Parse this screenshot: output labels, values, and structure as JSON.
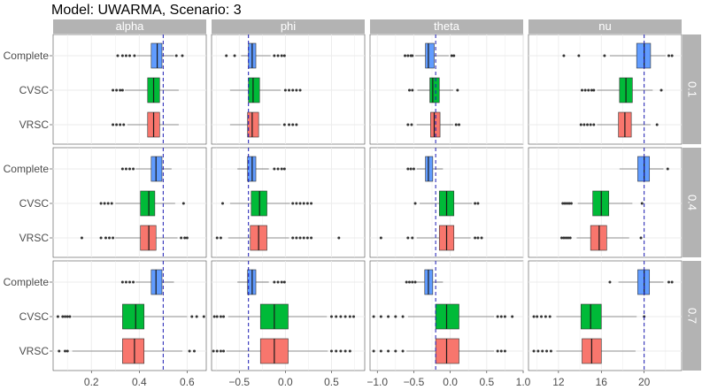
{
  "title": "Model: UWARMA, Scenario: 3",
  "colors": {
    "Complete": "#619CFF",
    "CVSC": "#00BA38",
    "VRSC": "#F8766D",
    "strip": "#b3b3b3",
    "reference": "#1a1ab3",
    "outlier": "#333333"
  },
  "chart_data": {
    "type": "boxplot",
    "title": "Model: UWARMA, Scenario: 3",
    "parameters": [
      "alpha",
      "phi",
      "theta",
      "nu"
    ],
    "rows": [
      "0.1",
      "0.4",
      "0.7"
    ],
    "categories": [
      "Complete",
      "CVSC",
      "VRSC"
    ],
    "true_values": {
      "alpha": 0.5,
      "phi": -0.4,
      "theta": -0.2,
      "nu": 20
    },
    "axes": {
      "alpha": {
        "range": [
          0.04,
          0.68
        ],
        "ticks": [
          0.2,
          0.4,
          0.6
        ],
        "tick_labels": [
          "0.2",
          "0.4",
          "0.6"
        ]
      },
      "phi": {
        "range": [
          -0.8,
          0.86
        ],
        "ticks": [
          -0.5,
          0.0,
          0.5
        ],
        "tick_labels": [
          "−0.5",
          "0.0",
          "0.5"
        ]
      },
      "theta": {
        "range": [
          -1.1,
          1.0
        ],
        "ticks": [
          -1.0,
          -0.5,
          0.0,
          0.5,
          1.0
        ],
        "tick_labels": [
          "−1.0",
          "−0.5",
          "0.0",
          "0.5",
          "1.0"
        ]
      },
      "nu": {
        "range": [
          9.2,
          23.5
        ],
        "ticks": [
          12,
          16,
          20
        ],
        "tick_labels": [
          "12",
          "16",
          "20"
        ]
      }
    },
    "panels": {
      "0.1": {
        "alpha": {
          "Complete": {
            "whisker_low": 0.39,
            "q1": 0.45,
            "median": 0.475,
            "q3": 0.495,
            "whisker_high": 0.545,
            "outliers": [
              0.31,
              0.33,
              0.345,
              0.36,
              0.38,
              0.555,
              0.58
            ]
          },
          "CVSC": {
            "whisker_low": 0.34,
            "q1": 0.435,
            "median": 0.46,
            "q3": 0.485,
            "whisker_high": 0.565,
            "outliers": [
              0.29,
              0.305,
              0.32,
              0.33
            ]
          },
          "VRSC": {
            "whisker_low": 0.35,
            "q1": 0.435,
            "median": 0.46,
            "q3": 0.485,
            "whisker_high": 0.565,
            "outliers": [
              0.29,
              0.305,
              0.32,
              0.335
            ]
          }
        },
        "phi": {
          "Complete": {
            "whisker_low": -0.48,
            "q1": -0.4,
            "median": -0.36,
            "q3": -0.32,
            "whisker_high": -0.16,
            "outliers": [
              -0.64,
              -0.55,
              -0.12,
              -0.08,
              -0.04,
              -0.01
            ]
          },
          "CVSC": {
            "whisker_low": -0.6,
            "q1": -0.4,
            "median": -0.35,
            "q3": -0.28,
            "whisker_high": -0.05,
            "outliers": [
              0.0,
              0.04,
              0.08,
              0.12,
              0.16
            ]
          },
          "VRSC": {
            "whisker_low": -0.6,
            "q1": -0.41,
            "median": -0.36,
            "q3": -0.29,
            "whisker_high": -0.05,
            "outliers": [
              -0.01,
              0.04,
              0.08,
              0.12
            ]
          }
        },
        "theta": {
          "Complete": {
            "whisker_low": -0.48,
            "q1": -0.34,
            "median": -0.3,
            "q3": -0.22,
            "whisker_high": -0.02,
            "outliers": [
              -0.62,
              -0.58,
              -0.54,
              -0.52,
              0.02,
              0.05
            ]
          },
          "CVSC": {
            "whisker_low": -0.45,
            "q1": -0.28,
            "median": -0.24,
            "q3": -0.15,
            "whisker_high": 0.04,
            "outliers": [
              -0.56,
              -0.52,
              0.1
            ]
          },
          "VRSC": {
            "whisker_low": -0.46,
            "q1": -0.27,
            "median": -0.22,
            "q3": -0.14,
            "whisker_high": 0.04,
            "outliers": [
              -0.58,
              -0.53,
              0.08,
              0.12
            ]
          }
        },
        "nu": {
          "Complete": {
            "whisker_low": 16.8,
            "q1": 19.3,
            "median": 20.0,
            "q3": 20.6,
            "whisker_high": 22.0,
            "outliers": [
              12.5,
              13.9,
              16.3,
              22.3,
              22.6
            ]
          },
          "CVSC": {
            "whisker_low": 15.6,
            "q1": 17.7,
            "median": 18.3,
            "q3": 18.9,
            "whisker_high": 20.8,
            "outliers": [
              14.2,
              14.5,
              14.8,
              15.1,
              15.3,
              21.6
            ]
          },
          "VRSC": {
            "whisker_low": 15.6,
            "q1": 17.6,
            "median": 18.2,
            "q3": 18.8,
            "whisker_high": 20.6,
            "outliers": [
              14.1,
              14.4,
              14.7,
              15.0,
              15.3,
              21.2
            ]
          }
        }
      },
      "0.4": {
        "alpha": {
          "Complete": {
            "whisker_low": 0.385,
            "q1": 0.45,
            "median": 0.47,
            "q3": 0.495,
            "whisker_high": 0.535,
            "outliers": [
              0.33,
              0.345,
              0.36,
              0.375
            ]
          },
          "CVSC": {
            "whisker_low": 0.3,
            "q1": 0.405,
            "median": 0.44,
            "q3": 0.465,
            "whisker_high": 0.55,
            "outliers": [
              0.24,
              0.255,
              0.27,
              0.285,
              0.585
            ]
          },
          "VRSC": {
            "whisker_low": 0.3,
            "q1": 0.405,
            "median": 0.44,
            "q3": 0.47,
            "whisker_high": 0.56,
            "outliers": [
              0.16,
              0.24,
              0.26,
              0.275,
              0.29,
              0.575,
              0.59,
              0.6
            ]
          }
        },
        "phi": {
          "Complete": {
            "whisker_low": -0.52,
            "q1": -0.41,
            "median": -0.36,
            "q3": -0.32,
            "whisker_high": -0.18,
            "outliers": [
              -0.12,
              -0.08,
              -0.04,
              -0.01
            ]
          },
          "CVSC": {
            "whisker_low": -0.6,
            "q1": -0.37,
            "median": -0.28,
            "q3": -0.2,
            "whisker_high": 0.05,
            "outliers": [
              -0.68,
              0.08,
              0.12,
              0.16,
              0.2,
              0.24,
              0.28
            ]
          },
          "VRSC": {
            "whisker_low": -0.62,
            "q1": -0.38,
            "median": -0.29,
            "q3": -0.2,
            "whisker_high": 0.04,
            "outliers": [
              -0.74,
              -0.7,
              0.08,
              0.12,
              0.16,
              0.2,
              0.24,
              0.28,
              0.58
            ]
          }
        },
        "theta": {
          "Complete": {
            "whisker_low": -0.46,
            "q1": -0.34,
            "median": -0.3,
            "q3": -0.24,
            "whisker_high": -0.1,
            "outliers": [
              -0.58,
              -0.54,
              -0.5
            ]
          },
          "CVSC": {
            "whisker_low": -0.42,
            "q1": -0.15,
            "median": -0.05,
            "q3": 0.05,
            "whisker_high": 0.3,
            "outliers": [
              -0.48,
              0.34,
              0.38
            ]
          },
          "VRSC": {
            "whisker_low": -0.46,
            "q1": -0.15,
            "median": -0.05,
            "q3": 0.05,
            "whisker_high": 0.28,
            "outliers": [
              -0.95,
              -0.58,
              -0.52,
              0.34,
              0.38,
              0.43
            ]
          }
        },
        "nu": {
          "Complete": {
            "whisker_low": 17.7,
            "q1": 19.4,
            "median": 20.0,
            "q3": 20.5,
            "whisker_high": 21.8,
            "outliers": [
              22.2
            ]
          },
          "CVSC": {
            "whisker_low": 13.8,
            "q1": 15.2,
            "median": 16.0,
            "q3": 16.7,
            "whisker_high": 18.9,
            "outliers": [
              12.4,
              12.6,
              12.8,
              13.0,
              13.2,
              19.8
            ]
          },
          "VRSC": {
            "whisker_low": 13.7,
            "q1": 15.0,
            "median": 15.8,
            "q3": 16.5,
            "whisker_high": 18.6,
            "outliers": [
              12.3,
              12.5,
              12.7,
              12.9,
              13.1,
              19.7
            ]
          }
        }
      },
      "0.7": {
        "alpha": {
          "Complete": {
            "whisker_low": 0.385,
            "q1": 0.45,
            "median": 0.47,
            "q3": 0.495,
            "whisker_high": 0.545,
            "outliers": [
              0.33,
              0.345,
              0.36,
              0.375
            ]
          },
          "CVSC": {
            "whisker_low": 0.12,
            "q1": 0.33,
            "median": 0.385,
            "q3": 0.42,
            "whisker_high": 0.6,
            "outliers": [
              0.06,
              0.08,
              0.09,
              0.1,
              0.11,
              0.62,
              0.64,
              0.67
            ]
          },
          "VRSC": {
            "whisker_low": 0.12,
            "q1": 0.33,
            "median": 0.38,
            "q3": 0.42,
            "whisker_high": 0.58,
            "outliers": [
              0.065,
              0.09,
              0.1,
              0.61,
              0.63
            ]
          }
        },
        "phi": {
          "Complete": {
            "whisker_low": -0.52,
            "q1": -0.41,
            "median": -0.36,
            "q3": -0.32,
            "whisker_high": -0.18,
            "outliers": [
              -0.12,
              -0.08,
              -0.04,
              -0.01
            ]
          },
          "CVSC": {
            "whisker_low": -0.62,
            "q1": -0.27,
            "median": -0.12,
            "q3": 0.03,
            "whisker_high": 0.45,
            "outliers": [
              -0.77,
              -0.74,
              -0.7,
              -0.67,
              0.5,
              0.55,
              0.6,
              0.65,
              0.7,
              0.74
            ]
          },
          "VRSC": {
            "whisker_low": -0.64,
            "q1": -0.27,
            "median": -0.12,
            "q3": 0.03,
            "whisker_high": 0.46,
            "outliers": [
              -0.78,
              -0.74,
              -0.7,
              -0.67,
              0.5,
              0.55,
              0.6,
              0.65,
              0.7
            ]
          }
        },
        "theta": {
          "Complete": {
            "whisker_low": -0.46,
            "q1": -0.35,
            "median": -0.3,
            "q3": -0.24,
            "whisker_high": -0.1,
            "outliers": [
              -0.6,
              -0.56,
              -0.52,
              -0.48
            ]
          },
          "CVSC": {
            "whisker_low": -0.58,
            "q1": -0.2,
            "median": -0.05,
            "q3": 0.12,
            "whisker_high": 0.6,
            "outliers": [
              -1.05,
              -0.95,
              -0.85,
              -0.75,
              -0.65,
              0.65,
              0.7,
              0.75,
              0.85
            ]
          },
          "VRSC": {
            "whisker_low": -0.6,
            "q1": -0.2,
            "median": -0.05,
            "q3": 0.12,
            "whisker_high": 0.6,
            "outliers": [
              -1.05,
              -0.95,
              -0.85,
              -0.75,
              -0.65,
              0.65,
              0.7,
              0.75
            ]
          }
        },
        "nu": {
          "Complete": {
            "whisker_low": 17.6,
            "q1": 19.4,
            "median": 20.0,
            "q3": 20.5,
            "whisker_high": 21.8,
            "outliers": [
              16.8,
              22.3,
              22.6
            ]
          },
          "CVSC": {
            "whisker_low": 11.8,
            "q1": 14.1,
            "median": 15.0,
            "q3": 16.0,
            "whisker_high": 19.3,
            "outliers": [
              9.7,
              10.0,
              10.4,
              10.8,
              11.2,
              20.0
            ]
          },
          "VRSC": {
            "whisker_low": 11.8,
            "q1": 14.2,
            "median": 15.1,
            "q3": 16.0,
            "whisker_high": 19.2,
            "outliers": [
              9.7,
              10.1,
              10.5,
              10.9,
              11.3
            ]
          }
        }
      }
    }
  }
}
